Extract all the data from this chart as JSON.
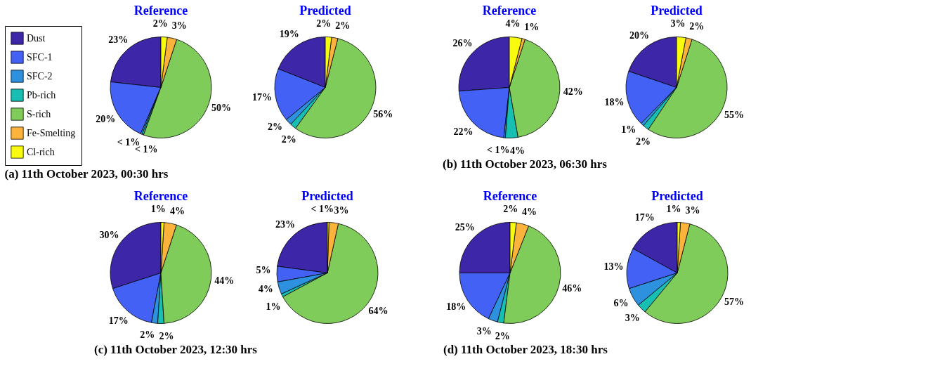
{
  "chart_data": [
    {
      "type": "pie",
      "title": "Reference",
      "annotations": [
        "(a) 11th October 2023, 00:30 hrs"
      ],
      "legend": "left",
      "categories": [
        "Dust",
        "SFC-1",
        "SFC-2",
        "Pb-rich",
        "S-rich",
        "Fe-Smelting",
        "Cl-rich"
      ],
      "colors": [
        "#3e26a8",
        "#4361f5",
        "#2d91e0",
        "#17bfb3",
        "#80cc5a",
        "#fbb33c",
        "#f9fb0e"
      ],
      "values": [
        23,
        20,
        0.5,
        0.5,
        50,
        3,
        2
      ],
      "value_labels": [
        "23%",
        "20%",
        "< 1%",
        "< 1%",
        "50%",
        "3%",
        "2%"
      ]
    },
    {
      "type": "pie",
      "title": "Predicted",
      "categories": [
        null,
        null,
        null,
        null,
        null,
        null,
        null
      ],
      "colors": [
        "#3e26a8",
        "#4361f5",
        "#2d91e0",
        "#17bfb3",
        "#80cc5a",
        "#fbb33c",
        "#f9fb0e"
      ],
      "values": [
        19,
        17,
        2,
        2,
        56,
        2,
        2
      ],
      "value_labels": [
        "19%",
        "17%",
        "2%",
        "2%",
        "56%",
        "2%",
        "2%"
      ]
    },
    {
      "type": "pie",
      "title": "Reference",
      "annotations": [
        "(b) 11th October 2023, 06:30 hrs"
      ],
      "categories": [
        null,
        null,
        null,
        null,
        null,
        null,
        null
      ],
      "colors": [
        "#3e26a8",
        "#4361f5",
        "#2d91e0",
        "#17bfb3",
        "#80cc5a",
        "#fbb33c",
        "#f9fb0e"
      ],
      "values": [
        26,
        22,
        0.5,
        4,
        42,
        1,
        4
      ],
      "value_labels": [
        "26%",
        "22%",
        "< 1%",
        "4%",
        "42%",
        "1%",
        "4%"
      ]
    },
    {
      "type": "pie",
      "title": "Predicted",
      "categories": [
        null,
        null,
        null,
        null,
        null,
        null,
        null
      ],
      "colors": [
        "#3e26a8",
        "#4361f5",
        "#2d91e0",
        "#17bfb3",
        "#80cc5a",
        "#fbb33c",
        "#f9fb0e"
      ],
      "values": [
        20,
        18,
        1,
        2,
        55,
        2,
        3
      ],
      "value_labels": [
        "20%",
        "18%",
        "1%",
        "2%",
        "55%",
        "2%",
        "3%"
      ]
    },
    {
      "type": "pie",
      "title": "Reference",
      "annotations": [
        "(c) 11th October 2023, 12:30 hrs"
      ],
      "categories": [
        null,
        null,
        null,
        null,
        null,
        null,
        null
      ],
      "colors": [
        "#3e26a8",
        "#4361f5",
        "#2d91e0",
        "#17bfb3",
        "#80cc5a",
        "#fbb33c",
        "#f9fb0e"
      ],
      "values": [
        30,
        17,
        2,
        2,
        44,
        4,
        1
      ],
      "value_labels": [
        "30%",
        "17%",
        "2%",
        "2%",
        "44%",
        "4%",
        "1%"
      ]
    },
    {
      "type": "pie",
      "title": "Predicted",
      "categories": [
        null,
        null,
        null,
        null,
        null,
        null,
        null
      ],
      "colors": [
        "#3e26a8",
        "#4361f5",
        "#2d91e0",
        "#17bfb3",
        "#80cc5a",
        "#fbb33c",
        "#f9fb0e"
      ],
      "values": [
        23,
        5,
        4,
        1,
        64,
        3,
        0.5
      ],
      "value_labels": [
        "23%",
        "5%",
        "4%",
        "1%",
        "64%",
        "3%",
        "< 1%"
      ]
    },
    {
      "type": "pie",
      "title": "Reference",
      "annotations": [
        "(d) 11th October 2023, 18:30 hrs"
      ],
      "categories": [
        null,
        null,
        null,
        null,
        null,
        null,
        null
      ],
      "colors": [
        "#3e26a8",
        "#4361f5",
        "#2d91e0",
        "#17bfb3",
        "#80cc5a",
        "#fbb33c",
        "#f9fb0e"
      ],
      "values": [
        25,
        18,
        3,
        2,
        46,
        4,
        2
      ],
      "value_labels": [
        "25%",
        "18%",
        "3%",
        "2%",
        "46%",
        "4%",
        "2%"
      ]
    },
    {
      "type": "pie",
      "title": "Predicted",
      "categories": [
        null,
        null,
        null,
        null,
        null,
        null,
        null
      ],
      "colors": [
        "#3e26a8",
        "#4361f5",
        "#2d91e0",
        "#17bfb3",
        "#80cc5a",
        "#fbb33c",
        "#f9fb0e"
      ],
      "values": [
        17,
        13,
        6,
        3,
        57,
        3,
        1
      ],
      "value_labels": [
        "17%",
        "13%",
        "6%",
        "3%",
        "57%",
        "3%",
        "1%"
      ]
    }
  ]
}
